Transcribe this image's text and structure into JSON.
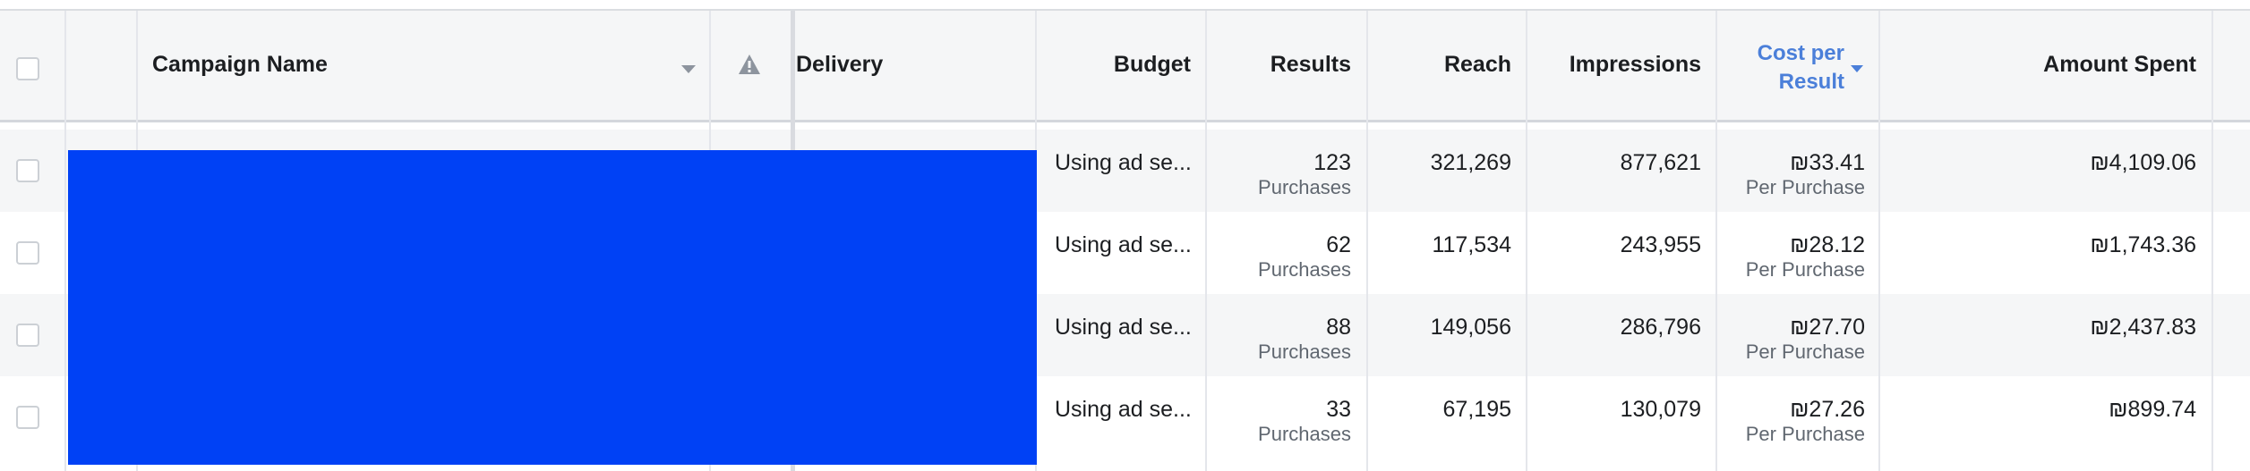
{
  "header": {
    "campaign_name": "Campaign Name",
    "delivery": "Delivery",
    "budget": "Budget",
    "results": "Results",
    "reach": "Reach",
    "impressions": "Impressions",
    "cost_per_result_line1": "Cost per",
    "cost_per_result_line2": "Result",
    "amount_spent": "Amount Spent"
  },
  "icons": {
    "sort_campaign": "caret-down-icon",
    "warning": "warning-triangle-icon",
    "sort_cost": "caret-down-icon"
  },
  "colors": {
    "accent_sorted_header": "#4b7fd9",
    "redaction": "#0041f5",
    "row_shade": "#f5f6f7"
  },
  "rows": [
    {
      "budget": "Using ad se...",
      "results": "123",
      "results_unit": "Purchases",
      "reach": "321,269",
      "impressions": "877,621",
      "cost_per_result": "₪33.41",
      "cost_unit": "Per Purchase",
      "amount_spent": "₪4,109.06"
    },
    {
      "budget": "Using ad se...",
      "results": "62",
      "results_unit": "Purchases",
      "reach": "117,534",
      "impressions": "243,955",
      "cost_per_result": "₪28.12",
      "cost_unit": "Per Purchase",
      "amount_spent": "₪1,743.36"
    },
    {
      "budget": "Using ad se...",
      "results": "88",
      "results_unit": "Purchases",
      "reach": "149,056",
      "impressions": "286,796",
      "cost_per_result": "₪27.70",
      "cost_unit": "Per Purchase",
      "amount_spent": "₪2,437.83"
    },
    {
      "budget": "Using ad se...",
      "results": "33",
      "results_unit": "Purchases",
      "reach": "67,195",
      "impressions": "130,079",
      "cost_per_result": "₪27.26",
      "cost_unit": "Per Purchase",
      "amount_spent": "₪899.74"
    }
  ]
}
